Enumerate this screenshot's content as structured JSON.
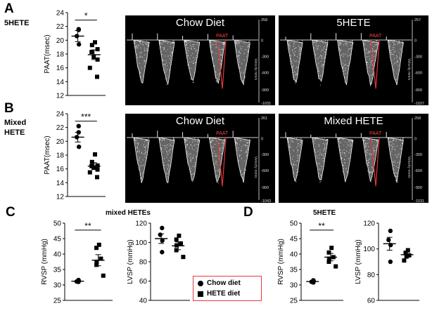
{
  "panels": {
    "A": {
      "letter": "A",
      "tag": "5HETE"
    },
    "B": {
      "letter": "B",
      "tag_line1": "Mixed",
      "tag_line2": "HETE"
    },
    "C": {
      "letter": "C",
      "subtitle": "mixed HETEs"
    },
    "D": {
      "letter": "D",
      "subtitle": "5HETE"
    }
  },
  "echo_panels": [
    {
      "id": "a-chow",
      "title": "Chow Diet",
      "paat_label": "PAAT",
      "scale_labels": [
        "258",
        "0",
        "-300",
        "-600",
        "-900",
        "-1031"
      ],
      "axis_label": "Velocity mm/s"
    },
    {
      "id": "a-5hete",
      "title": "5HETE",
      "paat_label": "PAAT",
      "scale_labels": [
        "257",
        "0",
        "-300",
        "-600",
        "-900",
        "-1027"
      ],
      "axis_label": "Velocity mm/s"
    },
    {
      "id": "b-chow",
      "title": "Chow Diet",
      "paat_label": "PAAT",
      "scale_labels": [
        "261",
        "0",
        "-300",
        "-600",
        "-900",
        "-1043"
      ],
      "axis_label": "Velocity mm/s"
    },
    {
      "id": "b-mixed",
      "title": "Mixed HETE",
      "paat_label": "PAAT",
      "scale_labels": [
        "258",
        "0",
        "-300",
        "-600",
        "-900",
        "-1031"
      ],
      "axis_label": "Velocity mm/s"
    }
  ],
  "legend": {
    "chow": "Chow diet",
    "hete": "HETE diet"
  },
  "chart_data": [
    {
      "id": "A-paat",
      "type": "scatter",
      "ylabel": "PAAT(msec)",
      "ylim": [
        12,
        24
      ],
      "yticks": [
        12,
        14,
        16,
        18,
        20,
        22,
        24
      ],
      "significance": "*",
      "series": [
        {
          "name": "Chow diet",
          "marker": "circle",
          "mean": 20.6,
          "sem": 0.8,
          "values": [
            21.6,
            20.6,
            19.4,
            21.5
          ]
        },
        {
          "name": "HETE diet",
          "marker": "square",
          "mean": 17.9,
          "sem": 0.7,
          "values": [
            19.7,
            19.3,
            18.7,
            18.3,
            17.6,
            17.2,
            16.0,
            14.7
          ]
        }
      ]
    },
    {
      "id": "B-paat",
      "type": "scatter",
      "ylabel": "PAAT(msec)",
      "ylim": [
        12,
        24
      ],
      "yticks": [
        12,
        14,
        16,
        18,
        20,
        22,
        24
      ],
      "significance": "***",
      "series": [
        {
          "name": "Chow diet",
          "marker": "circle",
          "mean": 20.6,
          "sem": 0.7,
          "values": [
            22.2,
            20.6,
            19.2,
            21.3
          ]
        },
        {
          "name": "HETE diet",
          "marker": "square",
          "mean": 16.4,
          "sem": 0.5,
          "values": [
            18.1,
            17.0,
            16.5,
            16.4,
            16.2,
            15.9,
            15.5,
            14.8
          ]
        }
      ]
    },
    {
      "id": "C-rvsp",
      "type": "scatter",
      "ylabel": "RVSP (mmHg)",
      "ylim": [
        25,
        50
      ],
      "yticks": [
        25,
        30,
        35,
        40,
        45,
        50
      ],
      "significance": "**",
      "series": [
        {
          "name": "Chow diet",
          "marker": "circle",
          "mean": 31.2,
          "sem": 0.3,
          "values": [
            31.0,
            31.1,
            31.3,
            31.6
          ]
        },
        {
          "name": "HETE diet",
          "marker": "square",
          "mean": 38.0,
          "sem": 1.8,
          "values": [
            43.0,
            42.0,
            38.5,
            37.5,
            36.5,
            33.0
          ]
        }
      ]
    },
    {
      "id": "C-lvsp",
      "type": "scatter",
      "ylabel": "LVSP (mmHg)",
      "ylim": [
        40,
        120
      ],
      "yticks": [
        40,
        60,
        80,
        100,
        120
      ],
      "significance": "",
      "series": [
        {
          "name": "Chow diet",
          "marker": "circle",
          "mean": 104,
          "sem": 5,
          "values": [
            115,
            108,
            102,
            90
          ]
        },
        {
          "name": "HETE diet",
          "marker": "square",
          "mean": 96.5,
          "sem": 4,
          "values": [
            107,
            103,
            99,
            97,
            92,
            85
          ]
        }
      ]
    },
    {
      "id": "D-rvsp",
      "type": "scatter",
      "ylabel": "RVSP (mmHg)",
      "ylim": [
        25,
        50
      ],
      "yticks": [
        25,
        30,
        35,
        40,
        45,
        50
      ],
      "significance": "**",
      "series": [
        {
          "name": "Chow diet",
          "marker": "circle",
          "mean": 31.1,
          "sem": 0.3,
          "values": [
            30.8,
            31.0,
            31.3,
            31.5
          ]
        },
        {
          "name": "HETE diet",
          "marker": "square",
          "mean": 39.0,
          "sem": 1.2,
          "values": [
            42.0,
            40.5,
            39.0,
            38.5,
            37.5,
            36.0
          ]
        }
      ]
    },
    {
      "id": "D-lvsp",
      "type": "scatter",
      "ylabel": "LVSP (mmHg)",
      "ylim": [
        60,
        120
      ],
      "yticks": [
        60,
        80,
        100,
        120
      ],
      "significance": "",
      "series": [
        {
          "name": "Chow diet",
          "marker": "circle",
          "mean": 104,
          "sem": 5,
          "values": [
            114,
            107,
            103,
            90
          ]
        },
        {
          "name": "HETE diet",
          "marker": "square",
          "mean": 95.5,
          "sem": 2,
          "values": [
            99,
            97,
            95,
            94,
            91
          ]
        }
      ]
    }
  ]
}
